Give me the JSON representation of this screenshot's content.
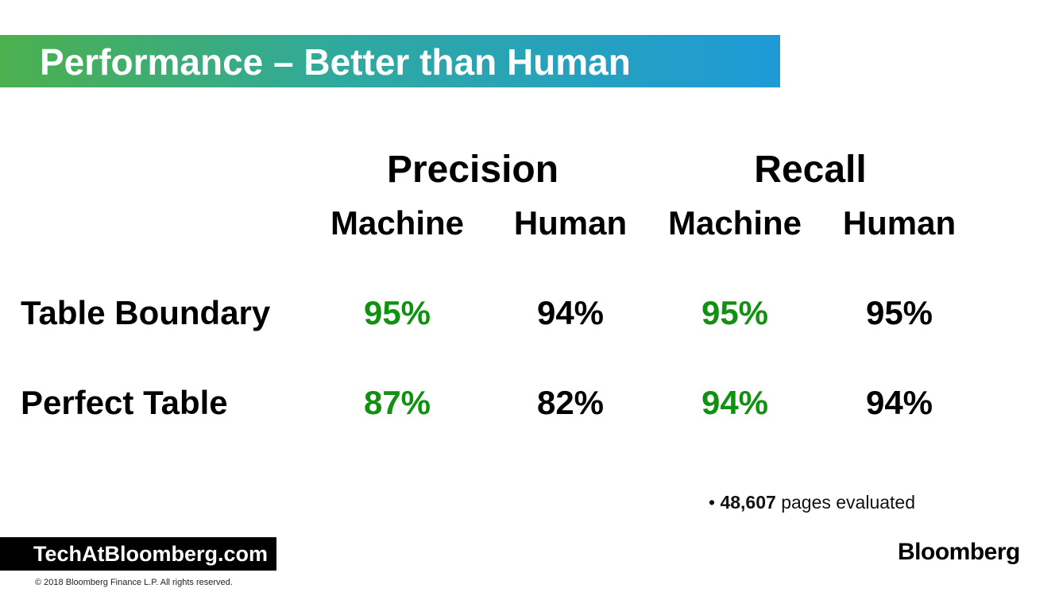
{
  "title": "Performance – Better than Human",
  "groups": {
    "precision": "Precision",
    "recall": "Recall"
  },
  "columns": {
    "p_machine": "Machine",
    "p_human": "Human",
    "r_machine": "Machine",
    "r_human": "Human"
  },
  "rows": [
    {
      "label": "Table Boundary",
      "precision_machine": "95%",
      "precision_human": "94%",
      "recall_machine": "95%",
      "recall_human": "95%"
    },
    {
      "label": "Perfect Table",
      "precision_machine": "87%",
      "precision_human": "82%",
      "recall_machine": "94%",
      "recall_human": "94%"
    }
  ],
  "note": {
    "bullet": "•",
    "count": "48,607",
    "text": " pages evaluated"
  },
  "footer": {
    "tech_site": "TechAtBloomberg.com",
    "copyright": "© 2018  Bloomberg  Finance L.P.  All rights reserved.",
    "logo": "Bloomberg"
  },
  "colors": {
    "machine_value": "#119111",
    "title_gradient_start": "#4cb04e",
    "title_gradient_end": "#1f9ad8"
  }
}
